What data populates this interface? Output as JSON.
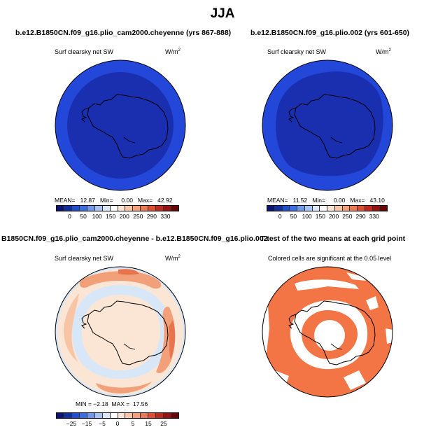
{
  "figure": {
    "title": "JJA"
  },
  "panels": [
    {
      "title": "b.e12.B1850CN.f09_g16.plio_cam2000.cheyenne (yrs 867-888)",
      "left_label": "Surf clearsky net SW",
      "units": "W/m",
      "units_sup": "2",
      "stats": "MEAN=   12.87   Min=     0.00   Max=   42.92",
      "colorbar_ticks": [
        "0",
        "50",
        "100",
        "150",
        "200",
        "250",
        "290",
        "330"
      ]
    },
    {
      "title": "b.e12.B1850CN.f09_g16.plio.002 (yrs 601-650)",
      "left_label": "Surf clearsky net SW",
      "units": "W/m",
      "units_sup": "2",
      "stats": "MEAN=   11.52   Min=     0.00   Max=   43.10",
      "colorbar_ticks": [
        "0",
        "50",
        "100",
        "150",
        "200",
        "250",
        "290",
        "330"
      ]
    },
    {
      "title": "B1850CN.f09_g16.plio_cam2000.cheyenne - b.e12.B1850CN.f09_g16.plio.002",
      "left_label": "Surf clearsky net SW",
      "units": "W/m",
      "units_sup": "2",
      "stats": "MIN = −2.18  MAX =  17.56",
      "colorbar_ticks": [
        "−25",
        "−15",
        "−5",
        "0",
        "5",
        "15",
        "25"
      ]
    },
    {
      "title": "T-test of the two means at each grid point",
      "left_label": "Colored cells are significant at the 0.05 level"
    }
  ],
  "colors": {
    "abs_palette": [
      "#0a1473",
      "#0f2fa0",
      "#1f4fd0",
      "#3b6fe0",
      "#6f97ea",
      "#a9c2f2",
      "#dce7f8",
      "#ffffff",
      "#fbe3d3",
      "#f8c4a6",
      "#f2a07a",
      "#ea7a53",
      "#dc4f31",
      "#c0281d",
      "#961111",
      "#6b0606"
    ],
    "diff_palette": [
      "#0a1473",
      "#0f2fa0",
      "#1f4fd0",
      "#3b6fe0",
      "#6f97ea",
      "#a9c2f2",
      "#dce7f8",
      "#ffffff",
      "#fbe3d3",
      "#f8c4a6",
      "#f2a07a",
      "#ea7a53",
      "#dc4f31",
      "#c0281d",
      "#961111",
      "#6b0606"
    ],
    "map_dark_blue": "#1a2fb0",
    "map_ring_blue": "#2347d8",
    "diff_base": "#fbe6d6",
    "diff_light_blue": "#d8e7f7",
    "diff_orange": "#f2a07a",
    "diff_red": "#e8744d",
    "ttest_orange": "#f37545"
  }
}
